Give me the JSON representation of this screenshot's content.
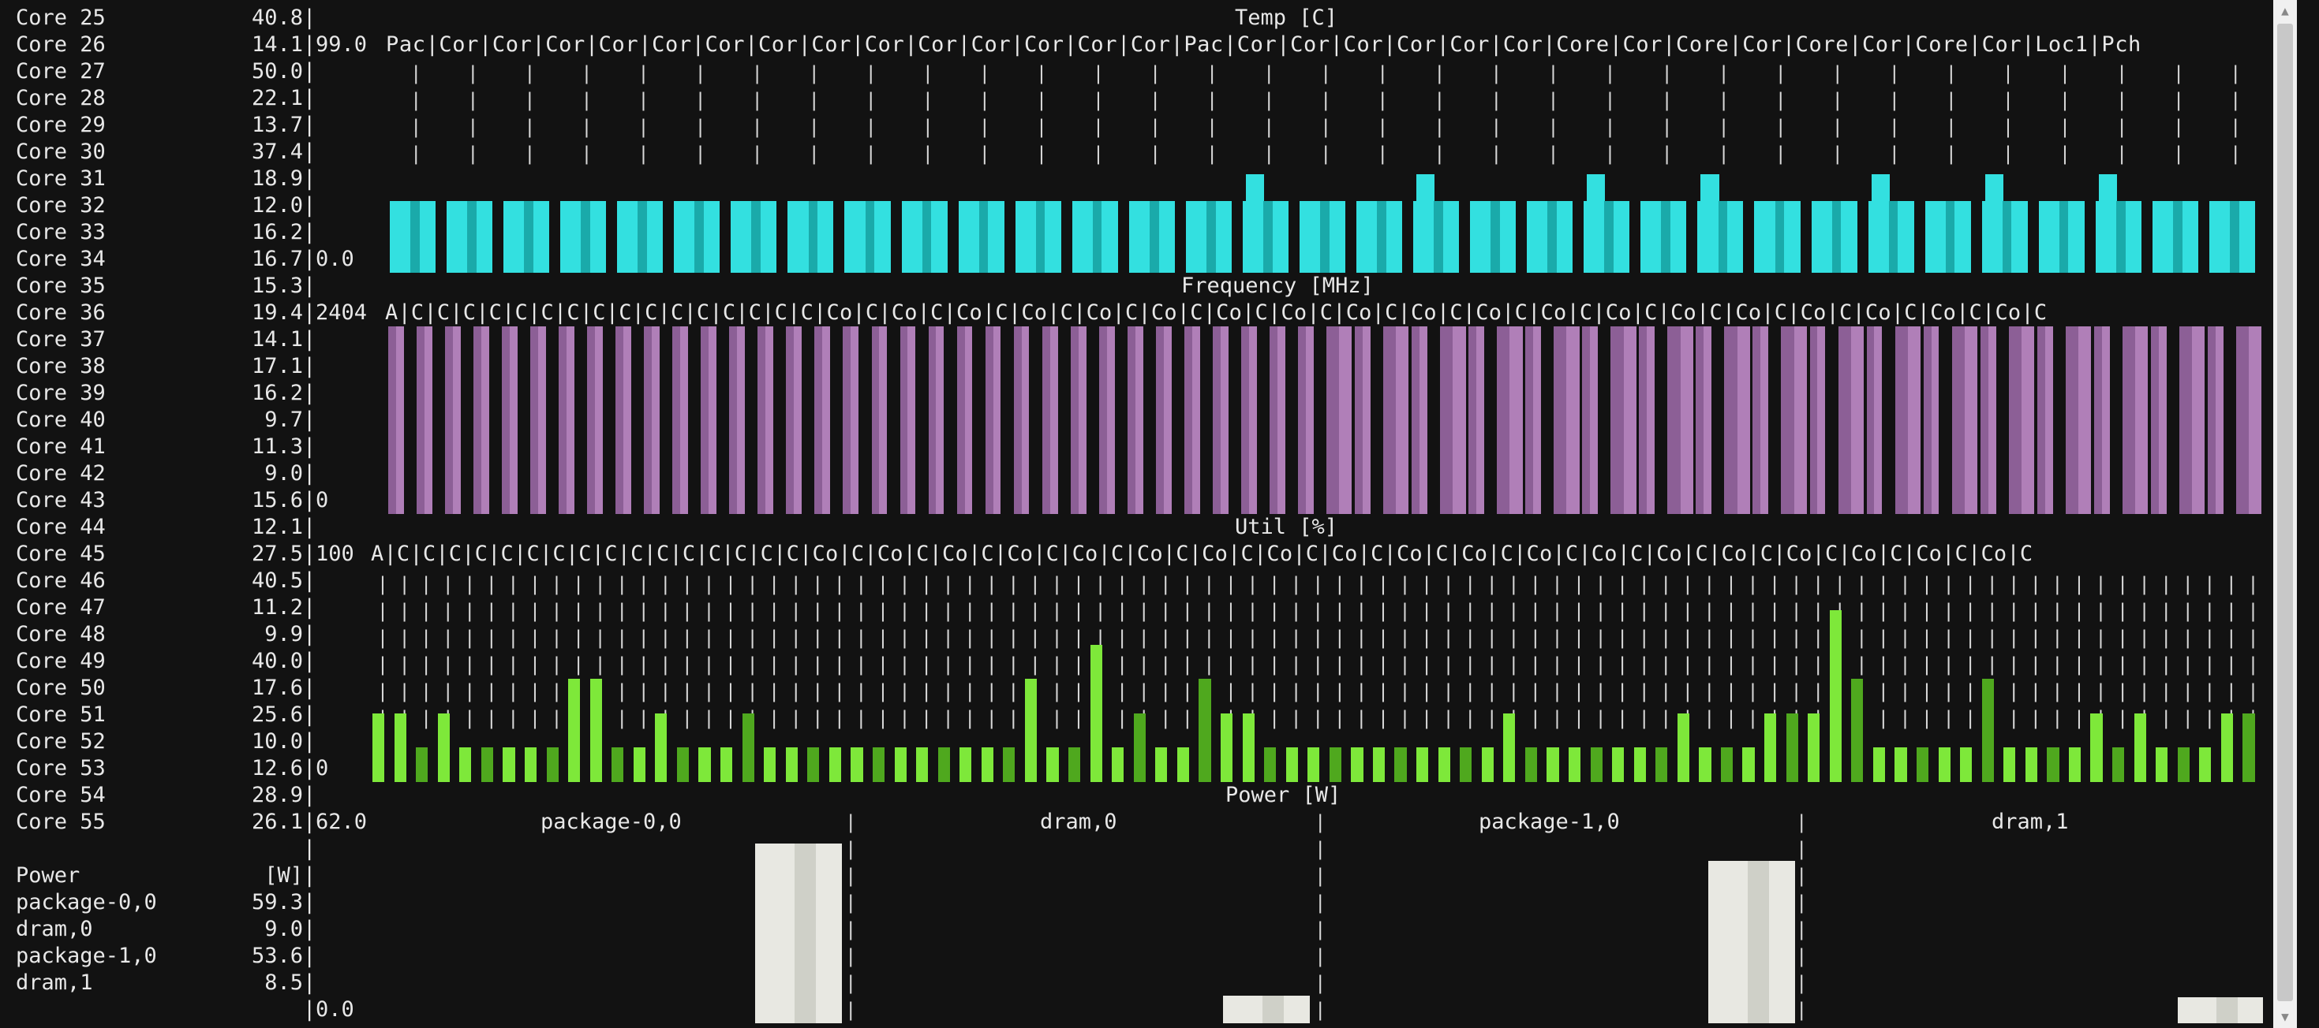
{
  "sidebar": {
    "cores": [
      {
        "label": "Core 25",
        "value": "40.8"
      },
      {
        "label": "Core 26",
        "value": "14.1"
      },
      {
        "label": "Core 27",
        "value": "50.0"
      },
      {
        "label": "Core 28",
        "value": "22.1"
      },
      {
        "label": "Core 29",
        "value": "13.7"
      },
      {
        "label": "Core 30",
        "value": "37.4"
      },
      {
        "label": "Core 31",
        "value": "18.9"
      },
      {
        "label": "Core 32",
        "value": "12.0"
      },
      {
        "label": "Core 33",
        "value": "16.2"
      },
      {
        "label": "Core 34",
        "value": "16.7"
      },
      {
        "label": "Core 35",
        "value": "15.3"
      },
      {
        "label": "Core 36",
        "value": "19.4"
      },
      {
        "label": "Core 37",
        "value": "14.1"
      },
      {
        "label": "Core 38",
        "value": "17.1"
      },
      {
        "label": "Core 39",
        "value": "16.2"
      },
      {
        "label": "Core 40",
        "value": "9.7"
      },
      {
        "label": "Core 41",
        "value": "11.3"
      },
      {
        "label": "Core 42",
        "value": "9.0"
      },
      {
        "label": "Core 43",
        "value": "15.6"
      },
      {
        "label": "Core 44",
        "value": "12.1"
      },
      {
        "label": "Core 45",
        "value": "27.5"
      },
      {
        "label": "Core 46",
        "value": "40.5"
      },
      {
        "label": "Core 47",
        "value": "11.2"
      },
      {
        "label": "Core 48",
        "value": "9.9"
      },
      {
        "label": "Core 49",
        "value": "40.0"
      },
      {
        "label": "Core 50",
        "value": "17.6"
      },
      {
        "label": "Core 51",
        "value": "25.6"
      },
      {
        "label": "Core 52",
        "value": "10.0"
      },
      {
        "label": "Core 53",
        "value": "12.6"
      },
      {
        "label": "Core 54",
        "value": "28.9"
      },
      {
        "label": "Core 55",
        "value": "26.1"
      }
    ],
    "power_header": {
      "label": "Power",
      "unit": "[W]"
    },
    "power": [
      {
        "label": "package-0,0",
        "value": "59.3"
      },
      {
        "label": "dram,0",
        "value": "9.0"
      },
      {
        "label": "package-1,0",
        "value": "53.6"
      },
      {
        "label": "dram,1",
        "value": "8.5"
      }
    ]
  },
  "panels": {
    "temp": {
      "title": "Temp [C]",
      "ymax": "99.0",
      "ymin": "0.0",
      "header_line": "Pac|Cor|Cor|Cor|Cor|Cor|Cor|Cor|Cor|Cor|Cor|Cor|Cor|Cor|Cor|Pac|Cor|Cor|Cor|Cor|Cor|Cor|Core|Cor|Core|Cor|Core|Cor|Core|Cor|Loc1|Pch",
      "color": "#33e0e0",
      "color_alt": "#1aaaaa"
    },
    "freq": {
      "title": "Frequency [MHz]",
      "ymax": "2404",
      "ymin": "0",
      "header_line": "A|C|C|C|C|C|C|C|C|C|C|C|C|C|C|C|C|Co|C|Co|C|Co|C|Co|C|Co|C|Co|C|Co|C|Co|C|Co|C|Co|C|Co|C|Co|C|Co|C|Co|C|Co|C|Co|C|Co|C|Co|C|Co|C",
      "color": "#b07fb8",
      "color_alt": "#8c5f96"
    },
    "util": {
      "title": "Util [%]",
      "ymax": "100",
      "ymin": "0",
      "header_line": "A|C|C|C|C|C|C|C|C|C|C|C|C|C|C|C|C|Co|C|Co|C|Co|C|Co|C|Co|C|Co|C|Co|C|Co|C|Co|C|Co|C|Co|C|Co|C|Co|C|Co|C|Co|C|Co|C|Co|C|Co|C|Co|C",
      "color": "#7ee83a",
      "color_alt": "#4fa81e"
    },
    "power": {
      "title": "Power [W]",
      "ymax": "62.0",
      "ymin": "0.0",
      "sections": [
        "package-0,0",
        "dram,0",
        "package-1,0",
        "dram,1"
      ],
      "color": "#e8e8e2",
      "color_alt": "#cfd0c8"
    }
  },
  "chart_data": [
    {
      "type": "bar",
      "title": "Temp [C]",
      "ylim": [
        0,
        99
      ],
      "values": [
        40,
        40,
        40,
        40,
        40,
        40,
        40,
        40,
        40,
        40,
        40,
        40,
        40,
        40,
        40,
        40,
        40,
        40,
        40,
        40,
        40,
        40,
        40,
        40,
        40,
        40,
        40,
        40,
        40,
        40,
        40,
        40,
        40,
        40,
        40,
        40,
        40,
        40,
        40,
        40,
        40,
        40,
        40,
        40,
        40,
        40,
        40,
        40,
        40,
        40,
        40,
        40,
        40,
        40,
        40,
        40,
        40,
        40,
        40,
        40,
        40,
        40,
        40,
        40,
        40,
        40,
        40,
        40,
        40,
        40,
        40,
        40,
        40,
        40,
        40,
        40,
        40,
        40,
        40,
        40,
        40,
        40,
        40,
        40,
        40,
        40,
        40,
        40,
        40,
        40,
        40,
        40,
        40,
        40,
        40,
        40,
        40,
        40,
        40,
        40,
        40,
        40,
        40,
        40,
        40,
        40,
        40,
        40,
        40,
        40,
        40,
        40,
        40,
        40,
        40,
        40,
        40,
        40,
        40,
        40,
        40,
        40,
        40,
        40,
        40,
        40,
        40,
        40,
        40,
        40,
        40,
        40,
        40,
        40,
        40,
        40,
        40,
        40,
        40,
        40,
        40,
        40,
        40,
        40,
        40,
        40,
        40,
        40,
        40,
        40,
        40,
        40,
        40,
        40,
        40,
        40,
        40,
        40,
        40,
        40,
        40,
        40,
        40,
        40,
        40,
        40,
        40,
        40,
        40,
        40,
        40,
        40,
        40,
        40,
        40,
        40,
        40,
        40,
        40,
        40,
        40,
        40,
        40,
        40,
        40,
        40,
        40,
        40,
        40,
        40,
        40,
        40,
        40,
        40,
        40,
        40,
        40,
        40,
        40,
        40,
        40,
        40,
        40,
        40,
        40,
        40,
        40,
        40,
        40,
        40,
        40,
        40,
        40,
        40
      ]
    },
    {
      "type": "bar",
      "title": "Frequency [MHz]",
      "ylim": [
        0,
        2404
      ],
      "values": [
        2404,
        2404,
        2404,
        2404,
        2404,
        2404,
        2404,
        2404,
        2404,
        2404,
        2404,
        2404,
        2404,
        2404,
        2404,
        2404,
        2404,
        2404,
        2404,
        2404,
        2404,
        2404,
        2404,
        2404,
        2404,
        2404,
        2404,
        2404,
        2404,
        2404,
        2404,
        2404,
        2404,
        2404,
        2404,
        2404,
        2404,
        2404,
        2404,
        2404,
        2404,
        2404,
        2404,
        2404,
        2404,
        2404,
        2404,
        2404,
        2404,
        2404,
        2404,
        2404,
        2404,
        2404,
        2404,
        2404,
        2404,
        2404,
        2404,
        2404,
        2404,
        2404,
        2404,
        2404,
        2404,
        2404,
        2404,
        2404,
        2404,
        2404,
        2404,
        2404,
        2404,
        2404,
        2404,
        2404,
        2404,
        2404,
        2404,
        2404,
        2404,
        2404,
        2404,
        2404,
        2404,
        2404,
        2404,
        2404,
        2404,
        2404,
        2404,
        2404,
        2404,
        2404,
        2404,
        2404,
        2404,
        2404,
        2404,
        2404,
        2404,
        2404,
        2404,
        2404,
        2404,
        2404,
        2404,
        2404,
        2404,
        2404,
        2404,
        2404,
        2404,
        2404,
        2404,
        2404,
        2404,
        2404,
        2404,
        2404,
        2404,
        2404,
        2404,
        2404,
        2404,
        2404,
        2404,
        2404,
        2404,
        2404,
        2404,
        2404,
        2404,
        2404,
        2404,
        2404
      ]
    },
    {
      "type": "bar",
      "title": "Util [%]",
      "ylim": [
        0,
        100
      ],
      "values": [
        20,
        20,
        10,
        20,
        10,
        10,
        10,
        10,
        10,
        30,
        30,
        10,
        10,
        20,
        10,
        10,
        10,
        20,
        10,
        10,
        10,
        10,
        10,
        10,
        10,
        10,
        10,
        10,
        10,
        10,
        30,
        10,
        10,
        40,
        10,
        20,
        10,
        10,
        30,
        20,
        20,
        10,
        10,
        10,
        10,
        10,
        10,
        10,
        10,
        10,
        10,
        10,
        20,
        10,
        10,
        10,
        10,
        10,
        10,
        10,
        20,
        10,
        10,
        10,
        20,
        20,
        20,
        50,
        30,
        10,
        10,
        10,
        10,
        10,
        30,
        10,
        10,
        10,
        10,
        20,
        10,
        20,
        10,
        10,
        10,
        20,
        20
      ]
    },
    {
      "type": "bar",
      "title": "Power [W]",
      "ylim": [
        0,
        62
      ],
      "categories": [
        "package-0,0",
        "dram,0",
        "package-1,0",
        "dram,1"
      ],
      "values": [
        59.3,
        9.0,
        53.6,
        8.5
      ]
    }
  ]
}
